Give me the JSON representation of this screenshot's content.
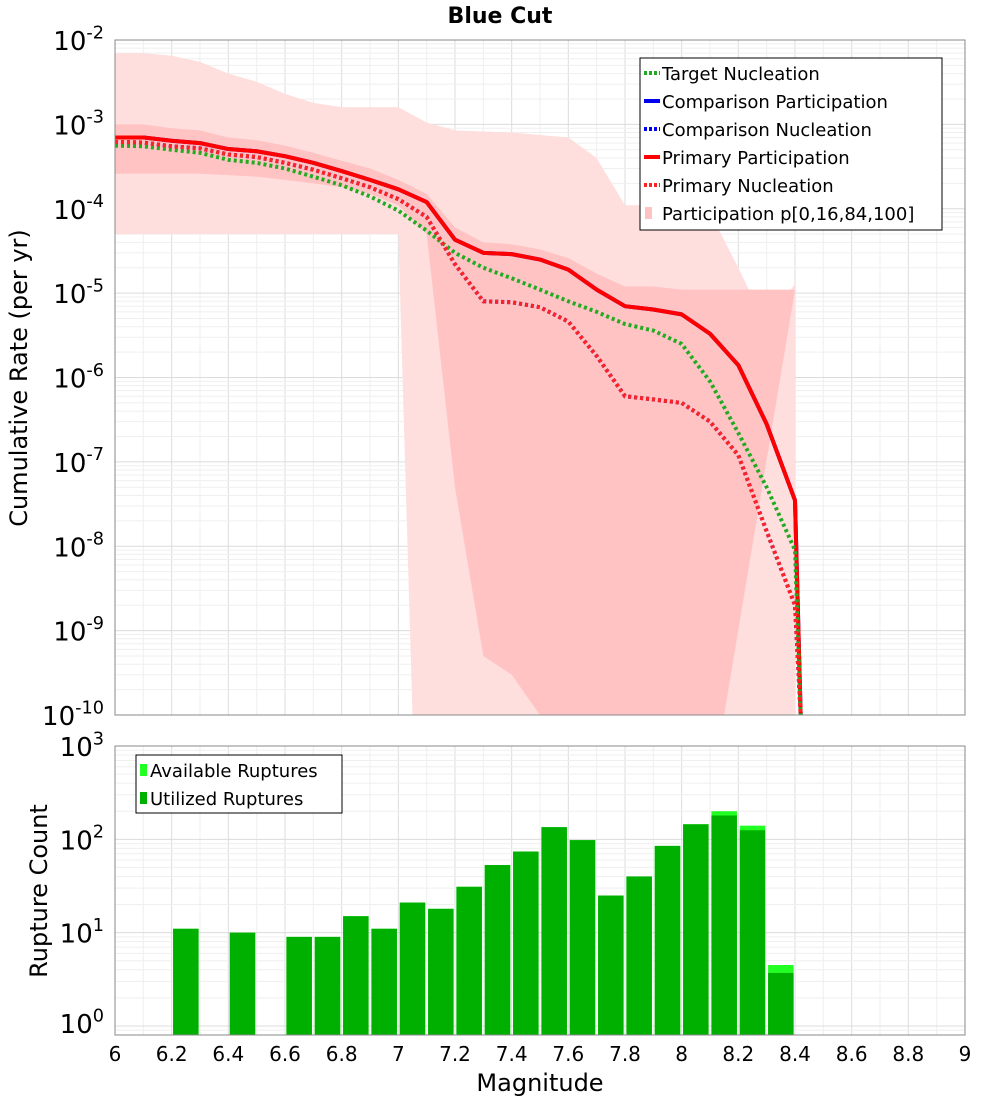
{
  "chart_data": [
    {
      "type": "line",
      "title": "Blue Cut",
      "ylabel": "Cumulative Rate (per yr)",
      "xlabel": "",
      "xlim": [
        6,
        9
      ],
      "ylim": [
        1e-10,
        0.01
      ],
      "yscale": "log",
      "legend_position": "top-right",
      "ytick_labels": [
        {
          "base": "10",
          "exp": "-2",
          "value": 0.01
        },
        {
          "base": "10",
          "exp": "-3",
          "value": 0.001
        },
        {
          "base": "10",
          "exp": "-4",
          "value": 0.0001
        },
        {
          "base": "10",
          "exp": "-5",
          "value": 1e-05
        },
        {
          "base": "10",
          "exp": "-6",
          "value": 1e-06
        },
        {
          "base": "10",
          "exp": "-7",
          "value": 1e-07
        },
        {
          "base": "10",
          "exp": "-8",
          "value": 1e-08
        },
        {
          "base": "10",
          "exp": "-9",
          "value": 1e-09
        },
        {
          "base": "10",
          "exp": "-10",
          "value": 1e-10
        }
      ],
      "bands": [
        {
          "name": "Participation p[0,16,84,100] outer (p0-p100)",
          "color": "#ffdede",
          "upper": {
            "x": [
              6.0,
              6.1,
              6.2,
              6.3,
              6.4,
              6.5,
              6.6,
              6.7,
              6.8,
              7.0,
              7.1,
              7.2,
              7.4,
              7.6,
              7.7,
              7.8,
              8.0,
              8.1,
              8.2,
              8.3,
              8.4
            ],
            "y": [
              0.007,
              0.007,
              0.0065,
              0.0055,
              0.004,
              0.0032,
              0.0023,
              0.0018,
              0.0016,
              0.0016,
              0.00105,
              0.00085,
              0.0008,
              0.0007,
              0.0004,
              0.00011,
              0.00011,
              9e-05,
              2e-05,
              4e-06,
              1.3e-05
            ]
          },
          "lower": {
            "x": [
              6.0,
              6.1,
              6.2,
              6.3,
              6.4,
              6.5,
              6.6,
              6.7,
              6.8,
              7.0,
              7.05,
              7.45,
              8.15,
              8.4
            ],
            "y": [
              5e-05,
              5e-05,
              5e-05,
              5e-05,
              5e-05,
              5e-05,
              5e-05,
              5e-05,
              5e-05,
              5e-05,
              1e-10,
              1e-10,
              1e-10,
              1e-10
            ]
          }
        },
        {
          "name": "Participation p[0,16,84,100] inner (p16-p84)",
          "color": "#ffc3c3",
          "upper": {
            "x": [
              6.0,
              6.1,
              6.2,
              6.3,
              6.4,
              6.5,
              6.6,
              6.7,
              6.8,
              6.9,
              7.0,
              7.1,
              7.2,
              7.3,
              7.4,
              7.5,
              7.6,
              7.7,
              7.8,
              7.9,
              8.0,
              8.1,
              8.4
            ],
            "y": [
              0.001,
              0.001,
              0.0009,
              0.00085,
              0.0007,
              0.00065,
              0.00056,
              0.00046,
              0.00037,
              0.0003,
              0.00022,
              0.00015,
              6e-05,
              4e-05,
              3.8e-05,
              3.3e-05,
              2.6e-05,
              1.7e-05,
              1.2e-05,
              1.2e-05,
              1.1e-05,
              1.1e-05,
              1.1e-05
            ]
          },
          "lower": {
            "x": [
              6.0,
              6.1,
              6.2,
              6.3,
              6.4,
              6.5,
              6.6,
              6.7,
              6.8,
              6.9,
              7.0,
              7.1,
              7.2,
              7.3,
              7.4,
              7.5,
              7.6,
              7.7,
              7.8,
              7.9,
              8.0,
              8.1,
              8.15
            ],
            "y": [
              0.00026,
              0.00026,
              0.00026,
              0.00026,
              0.00025,
              0.00024,
              0.00022,
              0.0002,
              0.00018,
              0.00015,
              0.00011,
              5e-05,
              5e-08,
              5e-10,
              3e-10,
              1e-10,
              1e-10,
              1e-10,
              1e-10,
              1e-10,
              1e-10,
              1e-10,
              1e-10
            ]
          }
        }
      ],
      "x": [
        6.0,
        6.1,
        6.2,
        6.3,
        6.4,
        6.5,
        6.6,
        6.7,
        6.8,
        6.9,
        7.0,
        7.1,
        7.2,
        7.3,
        7.4,
        7.5,
        7.6,
        7.7,
        7.8,
        7.9,
        8.0,
        8.1,
        8.2,
        8.3,
        8.4,
        8.42
      ],
      "series": [
        {
          "name": "Target Nucleation",
          "color": "#22aa22",
          "style": "dotted",
          "values": [
            0.00056,
            0.00055,
            0.0005,
            0.00046,
            0.00038,
            0.00035,
            0.0003,
            0.00024,
            0.00019,
            0.00014,
            9.5e-05,
            5.5e-05,
            3e-05,
            2e-05,
            1.5e-05,
            1.1e-05,
            8e-06,
            6e-06,
            4.3e-06,
            3.6e-06,
            2.5e-06,
            9e-07,
            2.2e-07,
            5e-08,
            9e-09,
            1e-10
          ]
        },
        {
          "name": "Comparison Participation",
          "color": "#0000ee",
          "style": "solid",
          "values": [
            0.0007,
            0.0007,
            0.00064,
            0.0006,
            0.00051,
            0.00048,
            0.00042,
            0.00035,
            0.00028,
            0.00022,
            0.00017,
            0.00012,
            4.3e-05,
            3e-05,
            2.9e-05,
            2.5e-05,
            1.9e-05,
            1.1e-05,
            7e-06,
            6.4e-06,
            5.6e-06,
            3.3e-06,
            1.4e-06,
            2.8e-07,
            3.5e-08,
            1e-10
          ]
        },
        {
          "name": "Comparison Nucleation",
          "color": "#0000ee",
          "style": "dotted",
          "values": [
            0.00062,
            0.00061,
            0.00055,
            0.00052,
            0.00044,
            0.00041,
            0.00035,
            0.00029,
            0.00023,
            0.00018,
            0.00013,
            8e-05,
            2.2e-05,
            8e-06,
            7.8e-06,
            6.8e-06,
            4.6e-06,
            1.8e-06,
            6e-07,
            5.5e-07,
            5e-07,
            3e-07,
            1.2e-07,
            1.5e-08,
            2e-09,
            1e-10
          ]
        },
        {
          "name": "Primary Participation",
          "color": "#ff0000",
          "style": "solid",
          "values": [
            0.0007,
            0.0007,
            0.00064,
            0.0006,
            0.00051,
            0.00048,
            0.00042,
            0.00035,
            0.00028,
            0.00022,
            0.00017,
            0.00012,
            4.3e-05,
            3e-05,
            2.9e-05,
            2.5e-05,
            1.9e-05,
            1.1e-05,
            7e-06,
            6.4e-06,
            5.6e-06,
            3.3e-06,
            1.4e-06,
            2.8e-07,
            3.5e-08,
            1e-10
          ]
        },
        {
          "name": "Primary Nucleation",
          "color": "#ff2222",
          "style": "dotted",
          "values": [
            0.00062,
            0.00061,
            0.00055,
            0.00052,
            0.00044,
            0.00041,
            0.00035,
            0.00029,
            0.00023,
            0.00018,
            0.00013,
            8e-05,
            2.2e-05,
            8e-06,
            7.8e-06,
            6.8e-06,
            4.6e-06,
            1.8e-06,
            6e-07,
            5.5e-07,
            5e-07,
            3e-07,
            1.2e-07,
            1.5e-08,
            2e-09,
            1e-10
          ]
        }
      ],
      "legend": [
        {
          "label": "Target Nucleation",
          "color": "#22aa22",
          "style": "dotted"
        },
        {
          "label": "Comparison Participation",
          "color": "#0000ee",
          "style": "solid"
        },
        {
          "label": " Comparison Nucleation",
          "color": "#0000ee",
          "style": "dotted"
        },
        {
          "label": "Primary Participation",
          "color": "#ff0000",
          "style": "solid"
        },
        {
          "label": " Primary Nucleation",
          "color": "#ff2222",
          "style": "dotted"
        },
        {
          "label": "Participation p[0,16,84,100]",
          "color": "#ffc3c3",
          "style": "patch"
        }
      ]
    },
    {
      "type": "bar",
      "title": "",
      "xlabel": "Magnitude",
      "ylabel": "Rupture Count",
      "xlim": [
        6,
        9
      ],
      "ylim": [
        0.8,
        1000
      ],
      "yscale": "log",
      "legend_position": "top-left",
      "xtick_labels": [
        "6",
        "6.2",
        "6.4",
        "6.6",
        "6.8",
        "7",
        "7.2",
        "7.4",
        "7.6",
        "7.8",
        "8",
        "8.2",
        "8.4",
        "8.6",
        "8.8",
        "9"
      ],
      "ytick_labels": [
        {
          "base": "10",
          "exp": "3",
          "value": 1000
        },
        {
          "base": "10",
          "exp": "2",
          "value": 100
        },
        {
          "base": "10",
          "exp": "1",
          "value": 10
        },
        {
          "base": "10",
          "exp": "0",
          "value": 1
        }
      ],
      "categories": [
        6.25,
        6.45,
        6.65,
        6.75,
        6.85,
        6.95,
        7.05,
        7.15,
        7.25,
        7.35,
        7.45,
        7.55,
        7.65,
        7.75,
        7.85,
        7.95,
        8.05,
        8.15,
        8.25,
        8.35
      ],
      "series": [
        {
          "name": "Available Ruptures",
          "color": "#22ff22",
          "values": [
            11,
            10,
            9,
            9,
            15,
            11,
            21,
            18,
            31,
            53,
            74,
            135,
            98,
            25,
            40,
            85,
            145,
            200,
            140,
            4.5
          ]
        },
        {
          "name": "Utilized Ruptures",
          "color": "#00b000",
          "values": [
            11,
            10,
            9,
            9,
            15,
            11,
            21,
            18,
            31,
            53,
            74,
            135,
            98,
            25,
            40,
            85,
            145,
            180,
            125,
            3.7
          ]
        }
      ],
      "legend": [
        {
          "label": "Available Ruptures",
          "color": "#22ff22"
        },
        {
          "label": "Utilized Ruptures",
          "color": "#00b000"
        }
      ]
    }
  ]
}
